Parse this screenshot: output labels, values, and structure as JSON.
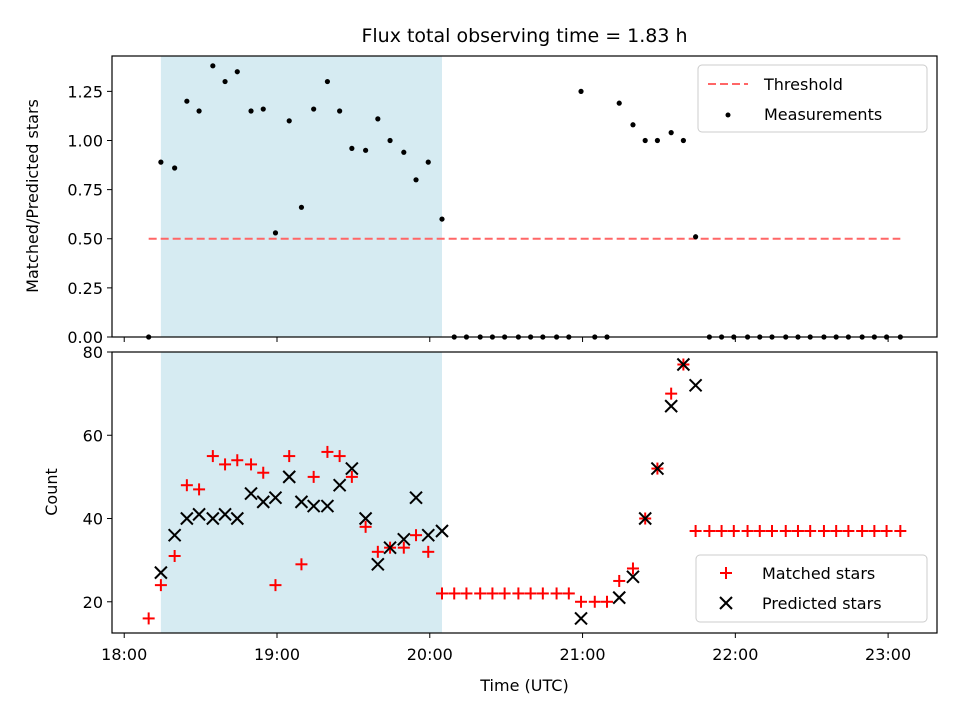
{
  "title": "Flux total observing time = 1.83 h",
  "colors": {
    "shade": "#add8e6",
    "threshold": "#ff6666",
    "matched": "#ff0000",
    "predicted": "#000000",
    "points": "#000000"
  },
  "chart_data": [
    {
      "type": "scatter",
      "ylabel": "Matched/Predicted stars",
      "ylim": [
        0,
        1.43
      ],
      "yticks": [
        "0.00",
        "0.25",
        "0.50",
        "0.75",
        "1.00",
        "1.25"
      ],
      "xlim": [
        17.92,
        23.32
      ],
      "shaded_span": [
        18.24,
        20.08
      ],
      "threshold": {
        "value": 0.5,
        "x": [
          18.16,
          23.08
        ],
        "name": "Threshold"
      },
      "legend": {
        "position": "top-right",
        "entries": [
          "Threshold",
          "Measurements"
        ]
      },
      "series": [
        {
          "name": "Measurements",
          "x": [
            18.16,
            18.24,
            18.33,
            18.41,
            18.49,
            18.58,
            18.66,
            18.74,
            18.83,
            18.91,
            18.99,
            19.08,
            19.16,
            19.24,
            19.33,
            19.41,
            19.49,
            19.58,
            19.66,
            19.74,
            19.83,
            19.91,
            19.99,
            20.08,
            20.16,
            20.24,
            20.33,
            20.41,
            20.49,
            20.58,
            20.66,
            20.74,
            20.83,
            20.91,
            20.99,
            21.08,
            21.16,
            21.24,
            21.33,
            21.41,
            21.49,
            21.58,
            21.66,
            21.74,
            21.83,
            21.91,
            21.99,
            22.08,
            22.16,
            22.24,
            22.33,
            22.41,
            22.49,
            22.58,
            22.66,
            22.74,
            22.83,
            22.91,
            22.99,
            23.08
          ],
          "y": [
            0,
            0.89,
            0.86,
            1.2,
            1.15,
            1.38,
            1.3,
            1.35,
            1.15,
            1.16,
            0.53,
            1.1,
            0.66,
            1.16,
            1.3,
            1.15,
            0.96,
            0.95,
            1.11,
            1.0,
            0.94,
            0.8,
            0.89,
            0.6,
            0,
            0,
            0,
            0,
            0,
            0,
            0,
            0,
            0,
            0,
            1.25,
            0,
            0,
            1.19,
            1.08,
            1.0,
            1.0,
            1.04,
            1.0,
            0.51,
            0,
            0,
            0,
            0,
            0,
            0,
            0,
            0,
            0,
            0,
            0,
            0,
            0,
            0,
            0,
            0
          ]
        }
      ]
    },
    {
      "type": "scatter",
      "ylabel": "Count",
      "xlabel": "Time (UTC)",
      "ylim": [
        12.5,
        80
      ],
      "yticks": [
        "20",
        "40",
        "60",
        "80"
      ],
      "xlim": [
        17.92,
        23.32
      ],
      "xticks": [
        "18:00",
        "19:00",
        "20:00",
        "21:00",
        "22:00",
        "23:00"
      ],
      "xtick_values": [
        18,
        19,
        20,
        21,
        22,
        23
      ],
      "shaded_span": [
        18.24,
        20.08
      ],
      "legend": {
        "position": "bottom-right",
        "entries": [
          "Matched stars",
          "Predicted stars"
        ]
      },
      "series": [
        {
          "name": "Matched stars",
          "marker": "+",
          "x": [
            18.16,
            18.24,
            18.33,
            18.41,
            18.49,
            18.58,
            18.66,
            18.74,
            18.83,
            18.91,
            18.99,
            19.08,
            19.16,
            19.24,
            19.33,
            19.41,
            19.49,
            19.58,
            19.66,
            19.74,
            19.83,
            19.91,
            19.99,
            20.08,
            20.16,
            20.24,
            20.33,
            20.41,
            20.49,
            20.58,
            20.66,
            20.74,
            20.83,
            20.91,
            20.99,
            21.08,
            21.16,
            21.24,
            21.33,
            21.41,
            21.49,
            21.58,
            21.66,
            21.74,
            21.83,
            21.91,
            21.99,
            22.08,
            22.16,
            22.24,
            22.33,
            22.41,
            22.49,
            22.58,
            22.66,
            22.74,
            22.83,
            22.91,
            22.99,
            23.08
          ],
          "y": [
            16,
            24,
            31,
            48,
            47,
            55,
            53,
            54,
            53,
            51,
            24,
            55,
            29,
            50,
            56,
            55,
            50,
            38,
            32,
            33,
            33,
            36,
            32,
            22,
            22,
            22,
            22,
            22,
            22,
            22,
            22,
            22,
            22,
            22,
            20,
            20,
            20,
            25,
            28,
            40,
            52,
            70,
            77,
            37,
            37,
            37,
            37,
            37,
            37,
            37,
            37,
            37,
            37,
            37,
            37,
            37,
            37,
            37,
            37,
            37
          ]
        },
        {
          "name": "Predicted stars",
          "marker": "x",
          "x": [
            18.24,
            18.33,
            18.41,
            18.49,
            18.58,
            18.66,
            18.74,
            18.83,
            18.91,
            18.99,
            19.08,
            19.16,
            19.24,
            19.33,
            19.41,
            19.49,
            19.58,
            19.66,
            19.74,
            19.83,
            19.91,
            19.99,
            20.08,
            20.99,
            21.24,
            21.33,
            21.41,
            21.49,
            21.58,
            21.66,
            21.74
          ],
          "y": [
            27,
            36,
            40,
            41,
            40,
            41,
            40,
            46,
            44,
            45,
            50,
            44,
            43,
            43,
            48,
            52,
            40,
            29,
            33,
            35,
            45,
            36,
            37,
            16,
            21,
            26,
            40,
            52,
            67,
            77,
            72
          ]
        }
      ]
    }
  ]
}
